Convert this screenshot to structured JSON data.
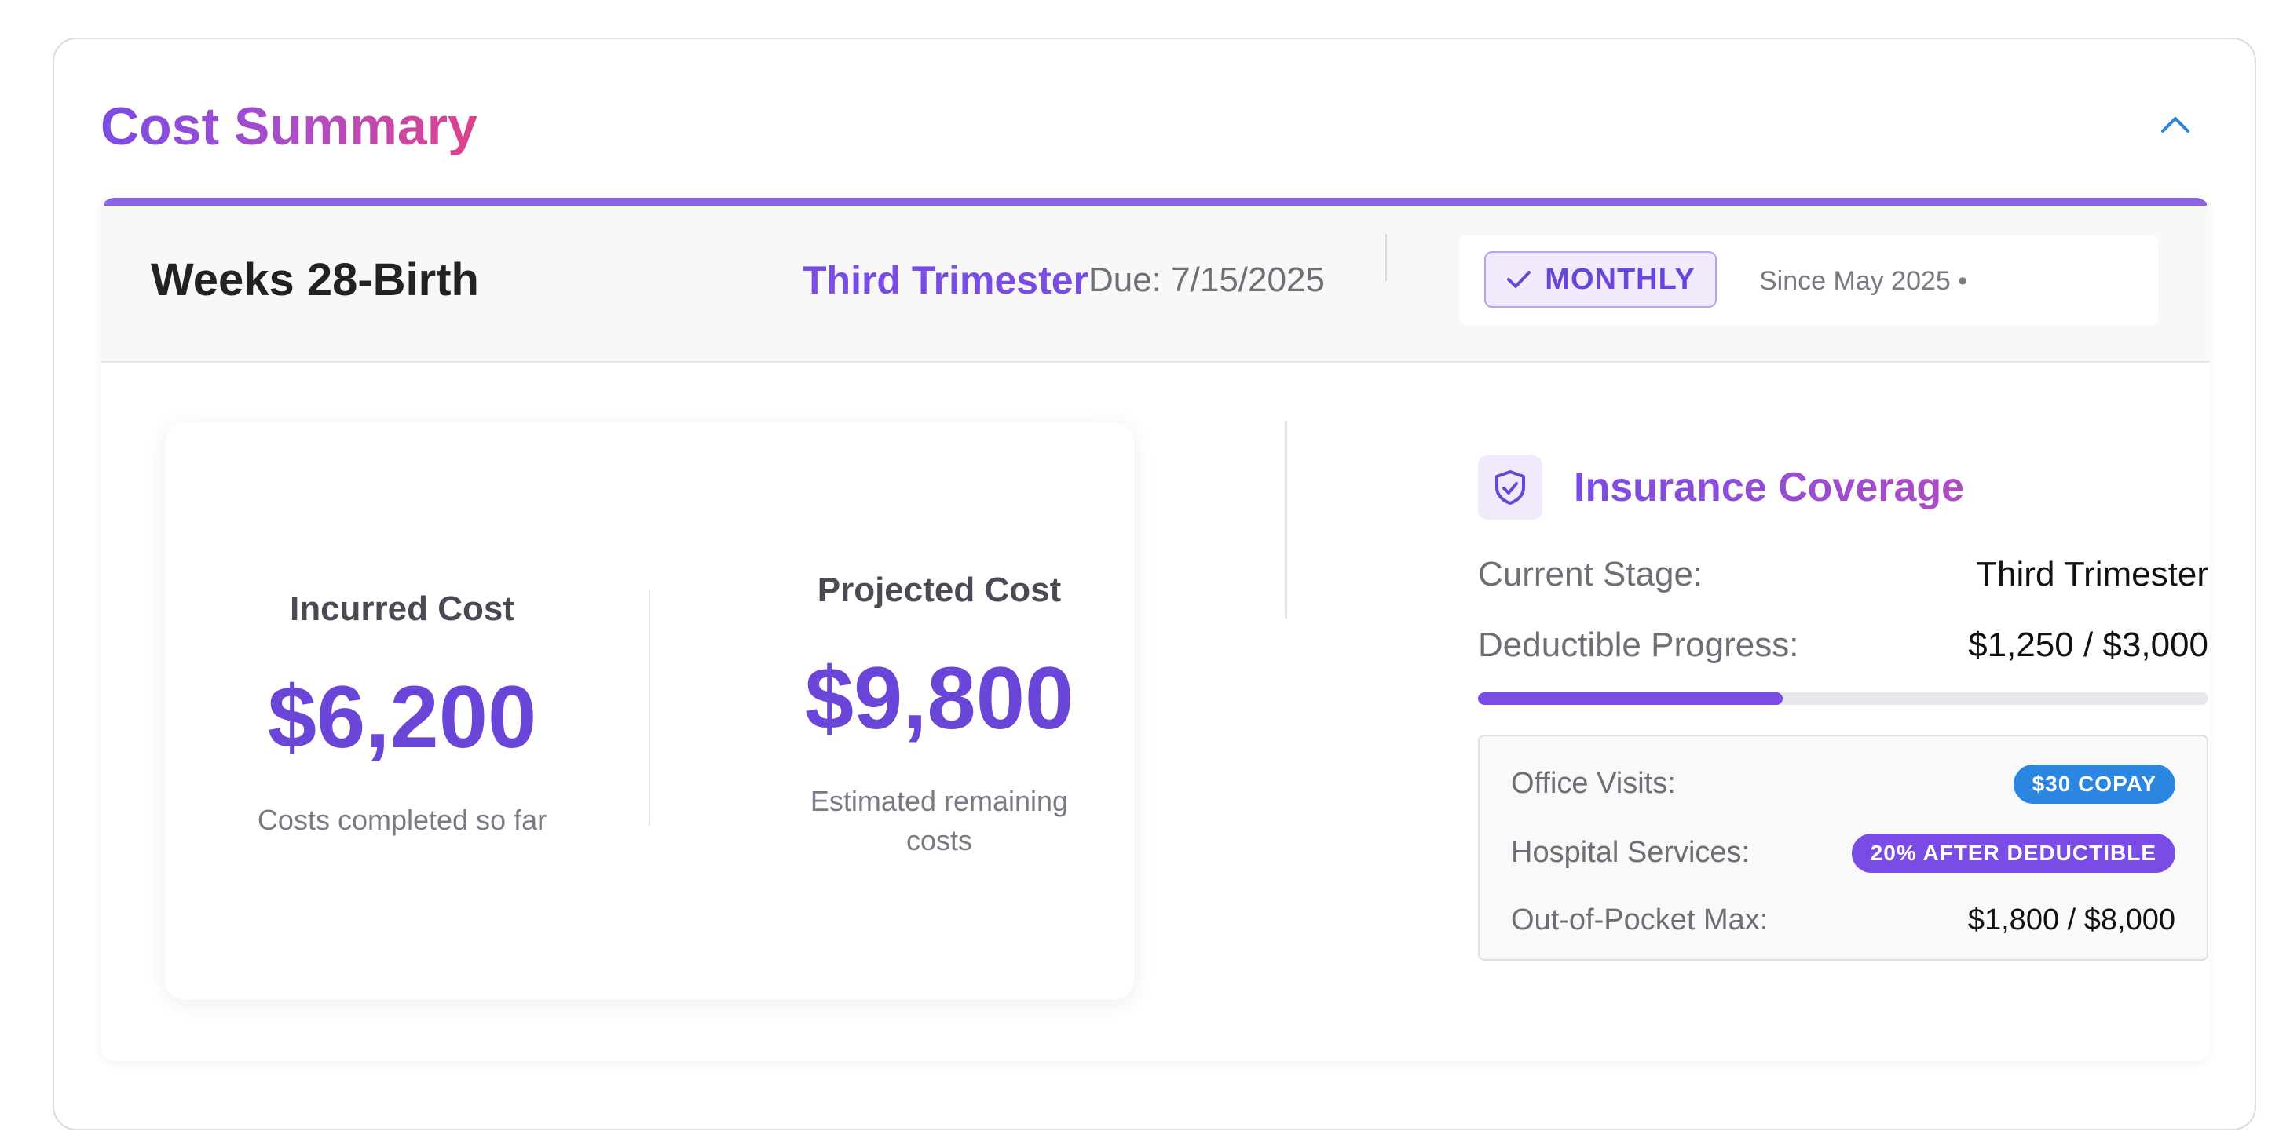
{
  "header": {
    "title": "Cost Summary"
  },
  "stage": {
    "weeks": "Weeks 28-Birth",
    "trimester": "Third Trimester",
    "due": "Due: 7/15/2025",
    "plan_label": "MONTHLY",
    "since": "Since May 2025 •"
  },
  "costs": {
    "incurred": {
      "label": "Incurred Cost",
      "value": "$6,200",
      "sub": "Costs completed so far"
    },
    "projected": {
      "label": "Projected Cost",
      "value": "$9,800",
      "sub": "Estimated remaining costs"
    }
  },
  "insurance": {
    "title": "Insurance Coverage",
    "stage_label": "Current Stage:",
    "stage_value": "Third Trimester",
    "deductible_label": "Deductible Progress:",
    "deductible_value": "$1,250 / $3,000",
    "deductible_fraction": 0.4167,
    "details": {
      "office_label": "Office Visits:",
      "office_badge": "$30 COPAY",
      "hospital_label": "Hospital Services:",
      "hospital_badge": "20% AFTER DEDUCTIBLE",
      "oop_label": "Out-of-Pocket Max:",
      "oop_value": "$1,800 / $8,000"
    }
  },
  "colors": {
    "accent": "#7a4ce6",
    "copay_badge": "#2a86e0",
    "deductible_badge": "#7a4ce6"
  },
  "icons": {
    "collapse": "chevron-up-icon",
    "check": "check-icon",
    "shield": "shield-icon"
  }
}
